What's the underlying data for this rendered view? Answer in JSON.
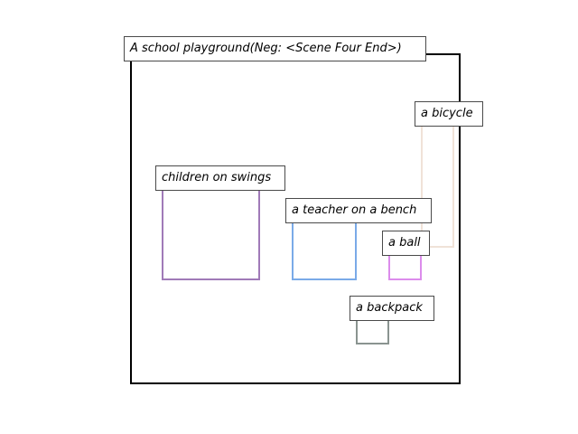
{
  "scene": {
    "caption": "A school playground(Neg: <Scene Four End>)",
    "objects": [
      {
        "label": "a bicycle",
        "color": "#f0e2d8"
      },
      {
        "label": "children on swings",
        "color": "#a07ab8"
      },
      {
        "label": "a teacher on a bench",
        "color": "#7aaae8"
      },
      {
        "label": "a ball",
        "color": "#dc8cec"
      },
      {
        "label": "a backpack",
        "color": "#8a9490"
      }
    ]
  }
}
